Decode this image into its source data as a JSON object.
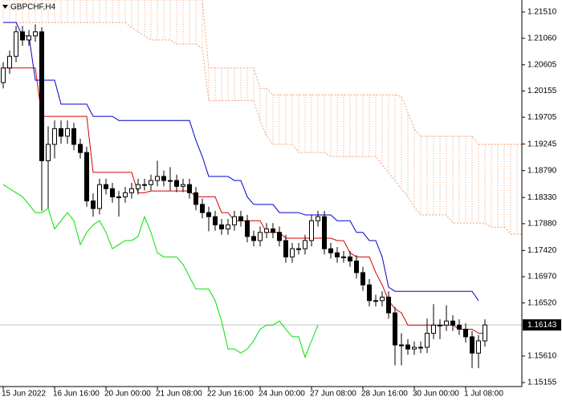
{
  "chart_data": {
    "type": "candlestick",
    "title": "GBPCHF,H4",
    "categories": [
      "15 Jun 2022",
      null,
      null,
      null,
      null,
      null,
      null,
      null,
      "16 Jun 16:00",
      null,
      null,
      null,
      null,
      null,
      null,
      null,
      "20 Jun 00:00",
      null,
      null,
      null,
      null,
      null,
      null,
      null,
      "21 Jun 08:00",
      null,
      null,
      null,
      null,
      null,
      null,
      null,
      "22 Jun 16:00",
      null,
      null,
      null,
      null,
      null,
      null,
      null,
      "24 Jun 00:00",
      null,
      null,
      null,
      null,
      null,
      null,
      null,
      "27 Jun 08:00",
      null,
      null,
      null,
      null,
      null,
      null,
      null,
      "28 Jun 16:00",
      null,
      null,
      null,
      null,
      null,
      null,
      null,
      "30 Jun 00:00",
      null,
      null,
      null,
      null,
      null,
      null,
      null,
      "1 Jul 08:00",
      null,
      null,
      null,
      null,
      null,
      null,
      null,
      null,
      null
    ],
    "open": [
      1.203,
      1.2055,
      1.2075,
      1.2117,
      1.2103,
      1.211,
      1.2117,
      1.1896,
      1.1924,
      1.1951,
      1.1938,
      1.1951,
      1.1924,
      1.191,
      1.1827,
      1.1814,
      1.1855,
      1.1848,
      1.1834,
      1.1834,
      1.1841,
      1.1848,
      1.1855,
      1.1855,
      1.1862,
      1.1869,
      1.1862,
      1.1862,
      1.1852,
      1.1855,
      1.1841,
      1.1821,
      1.1807,
      1.18,
      1.1786,
      1.1779,
      1.1786,
      1.18,
      1.1793,
      1.1766,
      1.1759,
      1.1773,
      1.1779,
      1.1773,
      1.1759,
      1.1731,
      1.1745,
      1.1745,
      1.1759,
      1.1793,
      1.18,
      1.1745,
      1.1738,
      1.1731,
      1.1731,
      1.1724,
      1.1704,
      1.1683,
      1.1656,
      1.1656,
      1.1662,
      1.1635,
      1.158,
      1.158,
      1.1573,
      1.1576,
      1.1576,
      1.16,
      1.1614,
      1.1614,
      1.1621,
      1.1614,
      1.1607,
      1.1594,
      1.1566,
      1.1587,
      null,
      null,
      null,
      null,
      null,
      null
    ],
    "high": [
      1.2065,
      1.2085,
      1.2127,
      1.2127,
      1.212,
      1.213,
      1.2125,
      1.1955,
      1.1965,
      1.1965,
      1.1965,
      1.1961,
      1.1934,
      1.192,
      1.184,
      1.1865,
      1.1865,
      1.1858,
      1.1844,
      1.1851,
      1.1858,
      1.1865,
      1.1865,
      1.1872,
      1.1896,
      1.1879,
      1.1885,
      1.1872,
      1.1865,
      1.1865,
      1.1851,
      1.1831,
      1.1817,
      1.181,
      1.1796,
      1.1796,
      1.181,
      1.181,
      1.1803,
      1.1776,
      1.1783,
      1.1789,
      1.1789,
      1.1783,
      1.1769,
      1.1755,
      1.1755,
      1.1769,
      1.1803,
      1.181,
      1.181,
      1.1755,
      1.1748,
      1.1741,
      1.1741,
      1.1734,
      1.1714,
      1.1693,
      1.1666,
      1.1672,
      1.1672,
      1.1645,
      1.16,
      1.159,
      1.1586,
      1.1586,
      1.1625,
      1.165,
      1.1624,
      1.1648,
      1.1631,
      1.1624,
      1.1617,
      1.1604,
      1.1597,
      1.1624,
      null,
      null,
      null,
      null,
      null,
      null
    ],
    "low": [
      1.202,
      1.2045,
      1.2065,
      1.2093,
      1.2093,
      1.21,
      1.181,
      1.1815,
      1.19,
      1.1925,
      1.1925,
      1.1914,
      1.19,
      1.1817,
      1.18,
      1.1804,
      1.1838,
      1.1824,
      1.18,
      1.1824,
      1.1831,
      1.1838,
      1.1845,
      1.1845,
      1.1852,
      1.1852,
      1.1845,
      1.1842,
      1.1842,
      1.1831,
      1.1811,
      1.1797,
      1.1775,
      1.1776,
      1.1769,
      1.1769,
      1.1776,
      1.1783,
      1.1756,
      1.1749,
      1.1749,
      1.1763,
      1.1763,
      1.1749,
      1.1721,
      1.1721,
      1.1735,
      1.1735,
      1.1749,
      1.1783,
      1.1735,
      1.1728,
      1.1721,
      1.1721,
      1.1714,
      1.1694,
      1.1673,
      1.1646,
      1.1646,
      1.1646,
      1.1625,
      1.1545,
      1.1545,
      1.1563,
      1.1563,
      1.1566,
      1.1566,
      1.159,
      1.159,
      1.1604,
      1.1604,
      1.1597,
      1.1584,
      1.154,
      1.154,
      1.1577,
      null,
      null,
      null,
      null,
      null,
      null
    ],
    "close": [
      1.2055,
      1.2075,
      1.2117,
      1.2103,
      1.211,
      1.2117,
      1.1896,
      1.1924,
      1.1951,
      1.1938,
      1.1951,
      1.1924,
      1.191,
      1.1827,
      1.1814,
      1.1855,
      1.1848,
      1.1834,
      1.1834,
      1.1841,
      1.1848,
      1.1855,
      1.1855,
      1.1862,
      1.1869,
      1.1862,
      1.1862,
      1.1852,
      1.1855,
      1.1841,
      1.1821,
      1.1807,
      1.18,
      1.1786,
      1.1779,
      1.1786,
      1.18,
      1.1793,
      1.1766,
      1.1759,
      1.1773,
      1.1779,
      1.1773,
      1.1759,
      1.1731,
      1.1745,
      1.1745,
      1.1759,
      1.1793,
      1.18,
      1.1745,
      1.1738,
      1.1731,
      1.1731,
      1.1724,
      1.1704,
      1.1683,
      1.1656,
      1.1656,
      1.1662,
      1.1635,
      1.158,
      1.158,
      1.1573,
      1.1576,
      1.1576,
      1.16,
      1.1614,
      1.1614,
      1.1621,
      1.1614,
      1.1607,
      1.1594,
      1.1566,
      1.1587,
      1.16143,
      null,
      null,
      null,
      null,
      null,
      null
    ],
    "up_color": "#ffffff",
    "down_color": "#000000",
    "outline_color": "#000000",
    "series": [
      {
        "color": "#d40000",
        "values": [
          1.2055,
          1.2055,
          1.2055,
          1.2055,
          1.2055,
          1.2055,
          1.1972,
          1.1972,
          1.1972,
          1.1972,
          1.1972,
          1.1972,
          1.1972,
          1.1972,
          1.1876,
          1.1876,
          1.1876,
          1.1876,
          1.1876,
          1.1876,
          1.1876,
          1.1841,
          1.1841,
          1.1844,
          1.1844,
          1.1844,
          1.1844,
          1.1844,
          1.1844,
          1.1844,
          1.1834,
          1.1834,
          1.1834,
          1.1834,
          1.1807,
          1.1807,
          1.1793,
          1.1793,
          1.1793,
          1.1793,
          1.1793,
          1.1773,
          1.1773,
          1.1773,
          1.1763,
          1.1763,
          1.1763,
          1.1763,
          1.1763,
          1.1763,
          1.1763,
          1.1763,
          1.1759,
          1.1759,
          1.1738,
          1.1731,
          1.1731,
          1.1731,
          1.1704,
          1.1683,
          1.1656,
          1.1642,
          1.1635,
          1.1614,
          1.1614,
          1.1614,
          1.1614,
          1.1614,
          1.1614,
          1.1614,
          1.1614,
          1.1607,
          1.1607,
          1.1607,
          1.16,
          1.16,
          null,
          null,
          null,
          null,
          null,
          null
        ]
      },
      {
        "color": "#0000c8",
        "values": [
          1.2133,
          1.2133,
          1.2133,
          1.211,
          1.211,
          1.2034,
          1.2034,
          1.2034,
          1.2034,
          1.1993,
          1.1993,
          1.1993,
          1.1993,
          1.1993,
          1.1972,
          1.1972,
          1.1972,
          1.1972,
          1.1965,
          1.1965,
          1.1965,
          1.1965,
          1.1965,
          1.1965,
          1.1965,
          1.1965,
          1.1965,
          1.1965,
          1.1965,
          1.1965,
          1.1931,
          1.1903,
          1.1869,
          1.1869,
          1.1869,
          1.1869,
          1.1862,
          1.1862,
          1.1834,
          1.1821,
          1.1821,
          1.1821,
          1.1821,
          1.1807,
          1.1807,
          1.1807,
          1.1807,
          1.1803,
          1.1803,
          1.1803,
          1.1803,
          1.1803,
          1.1793,
          1.1793,
          1.1793,
          1.1773,
          1.1773,
          1.1759,
          1.1759,
          1.1731,
          1.1679,
          1.1672,
          1.1672,
          1.1672,
          1.1672,
          1.1672,
          1.1672,
          1.1672,
          1.1672,
          1.1672,
          1.1672,
          1.1672,
          1.1672,
          1.1672,
          1.1656,
          null,
          null,
          null,
          null,
          null,
          null,
          null
        ]
      },
      {
        "color": "#00e000",
        "values": [
          1.1855,
          1.1848,
          1.1841,
          1.1834,
          1.1821,
          1.1807,
          1.1807,
          1.1814,
          1.1779,
          1.1793,
          1.1807,
          1.1793,
          1.1752,
          1.1773,
          1.1786,
          1.1793,
          1.1773,
          1.1745,
          1.1752,
          1.1759,
          1.1759,
          1.1766,
          1.18,
          1.1773,
          1.1738,
          1.1731,
          1.1731,
          1.1731,
          1.1718,
          1.1697,
          1.1676,
          1.1676,
          1.1676,
          1.1656,
          1.1621,
          1.1573,
          1.1573,
          1.1566,
          1.1573,
          1.1587,
          1.1607,
          1.1614,
          1.1614,
          1.1621,
          1.1607,
          1.1594,
          1.1594,
          1.1559,
          1.1587,
          1.1614,
          null,
          null,
          null,
          null,
          null,
          null,
          null,
          null,
          null,
          null,
          null,
          null,
          null,
          null,
          null,
          null,
          null,
          null,
          null,
          null,
          null,
          null,
          null,
          null,
          null,
          null,
          null,
          null,
          null,
          null,
          null,
          null
        ]
      }
    ],
    "cloud": {
      "color": "#f0a070",
      "span_a": [
        1.2172,
        1.2172,
        1.2172,
        1.2172,
        1.2172,
        1.2172,
        1.2172,
        1.2172,
        1.2172,
        1.2172,
        1.2172,
        1.2172,
        1.2172,
        1.2172,
        1.2172,
        1.2172,
        1.2172,
        1.2172,
        1.2172,
        1.2172,
        1.2172,
        1.2172,
        1.2172,
        1.2172,
        1.2172,
        1.2172,
        1.2172,
        1.2172,
        1.2172,
        1.2172,
        1.2172,
        1.2172,
        1.2055,
        1.2055,
        1.2055,
        1.2055,
        1.2055,
        1.2055,
        1.2055,
        1.2055,
        1.202,
        1.202,
        1.2009,
        1.2009,
        1.2009,
        1.2009,
        1.2009,
        1.2009,
        1.2009,
        1.2009,
        1.2009,
        1.2009,
        1.2009,
        1.2009,
        1.2009,
        1.2009,
        1.2009,
        1.2009,
        1.2009,
        1.2009,
        1.2009,
        1.2009,
        1.2006,
        1.1979,
        1.1951,
        1.1938,
        1.1938,
        1.1938,
        1.1938,
        1.1938,
        1.1938,
        1.1938,
        1.1938,
        1.1938,
        1.1924,
        1.1924,
        1.1924,
        1.1924,
        1.1924,
        1.1924,
        1.1924,
        1.1924
      ],
      "span_b": [
        1.2133,
        1.2133,
        1.2133,
        1.2133,
        1.2133,
        1.2133,
        1.2133,
        1.2133,
        1.2133,
        1.2133,
        1.2133,
        1.2133,
        1.2133,
        1.2133,
        1.2133,
        1.2133,
        1.2133,
        1.2133,
        1.2133,
        1.2133,
        1.2124,
        1.2117,
        1.211,
        1.2103,
        1.2103,
        1.2103,
        1.2103,
        1.2096,
        1.2096,
        1.2096,
        1.2096,
        1.2089,
        1.1999,
        1.1999,
        1.1999,
        1.1999,
        1.1999,
        1.1999,
        1.1999,
        1.1999,
        1.1965,
        1.1938,
        1.1924,
        1.1924,
        1.1924,
        1.1924,
        1.191,
        1.191,
        1.191,
        1.191,
        1.191,
        1.1903,
        1.1903,
        1.1903,
        1.1903,
        1.1903,
        1.1903,
        1.1903,
        1.1903,
        1.1889,
        1.1876,
        1.1862,
        1.1848,
        1.1834,
        1.1817,
        1.1803,
        1.1803,
        1.1803,
        1.1803,
        1.1803,
        1.1789,
        1.1789,
        1.1789,
        1.1789,
        1.1789,
        1.1789,
        1.1782,
        1.1782,
        1.1782,
        1.177,
        1.177,
        1.177
      ]
    },
    "current_price": 1.16143,
    "ylim": [
      1.15086,
      1.21716
    ],
    "yticks": [
      {
        "value": 1.2151,
        "label": "1.21510"
      },
      {
        "value": 1.2106,
        "label": "1.21060"
      },
      1.20605,
      1.20155,
      1.19705,
      1.19245,
      {
        "value": 1.1879,
        "label": "1.18790"
      },
      {
        "value": 1.1833,
        "label": "1.18330"
      },
      {
        "value": 1.1788,
        "label": "1.17880"
      },
      {
        "value": 1.1742,
        "label": "1.17420"
      },
      {
        "value": 1.1697,
        "label": "1.16970"
      },
      {
        "value": 1.1652,
        "label": "1.16520"
      },
      {
        "value": 1.1561,
        "label": "1.15610"
      },
      1.15155
    ],
    "grid": false
  }
}
